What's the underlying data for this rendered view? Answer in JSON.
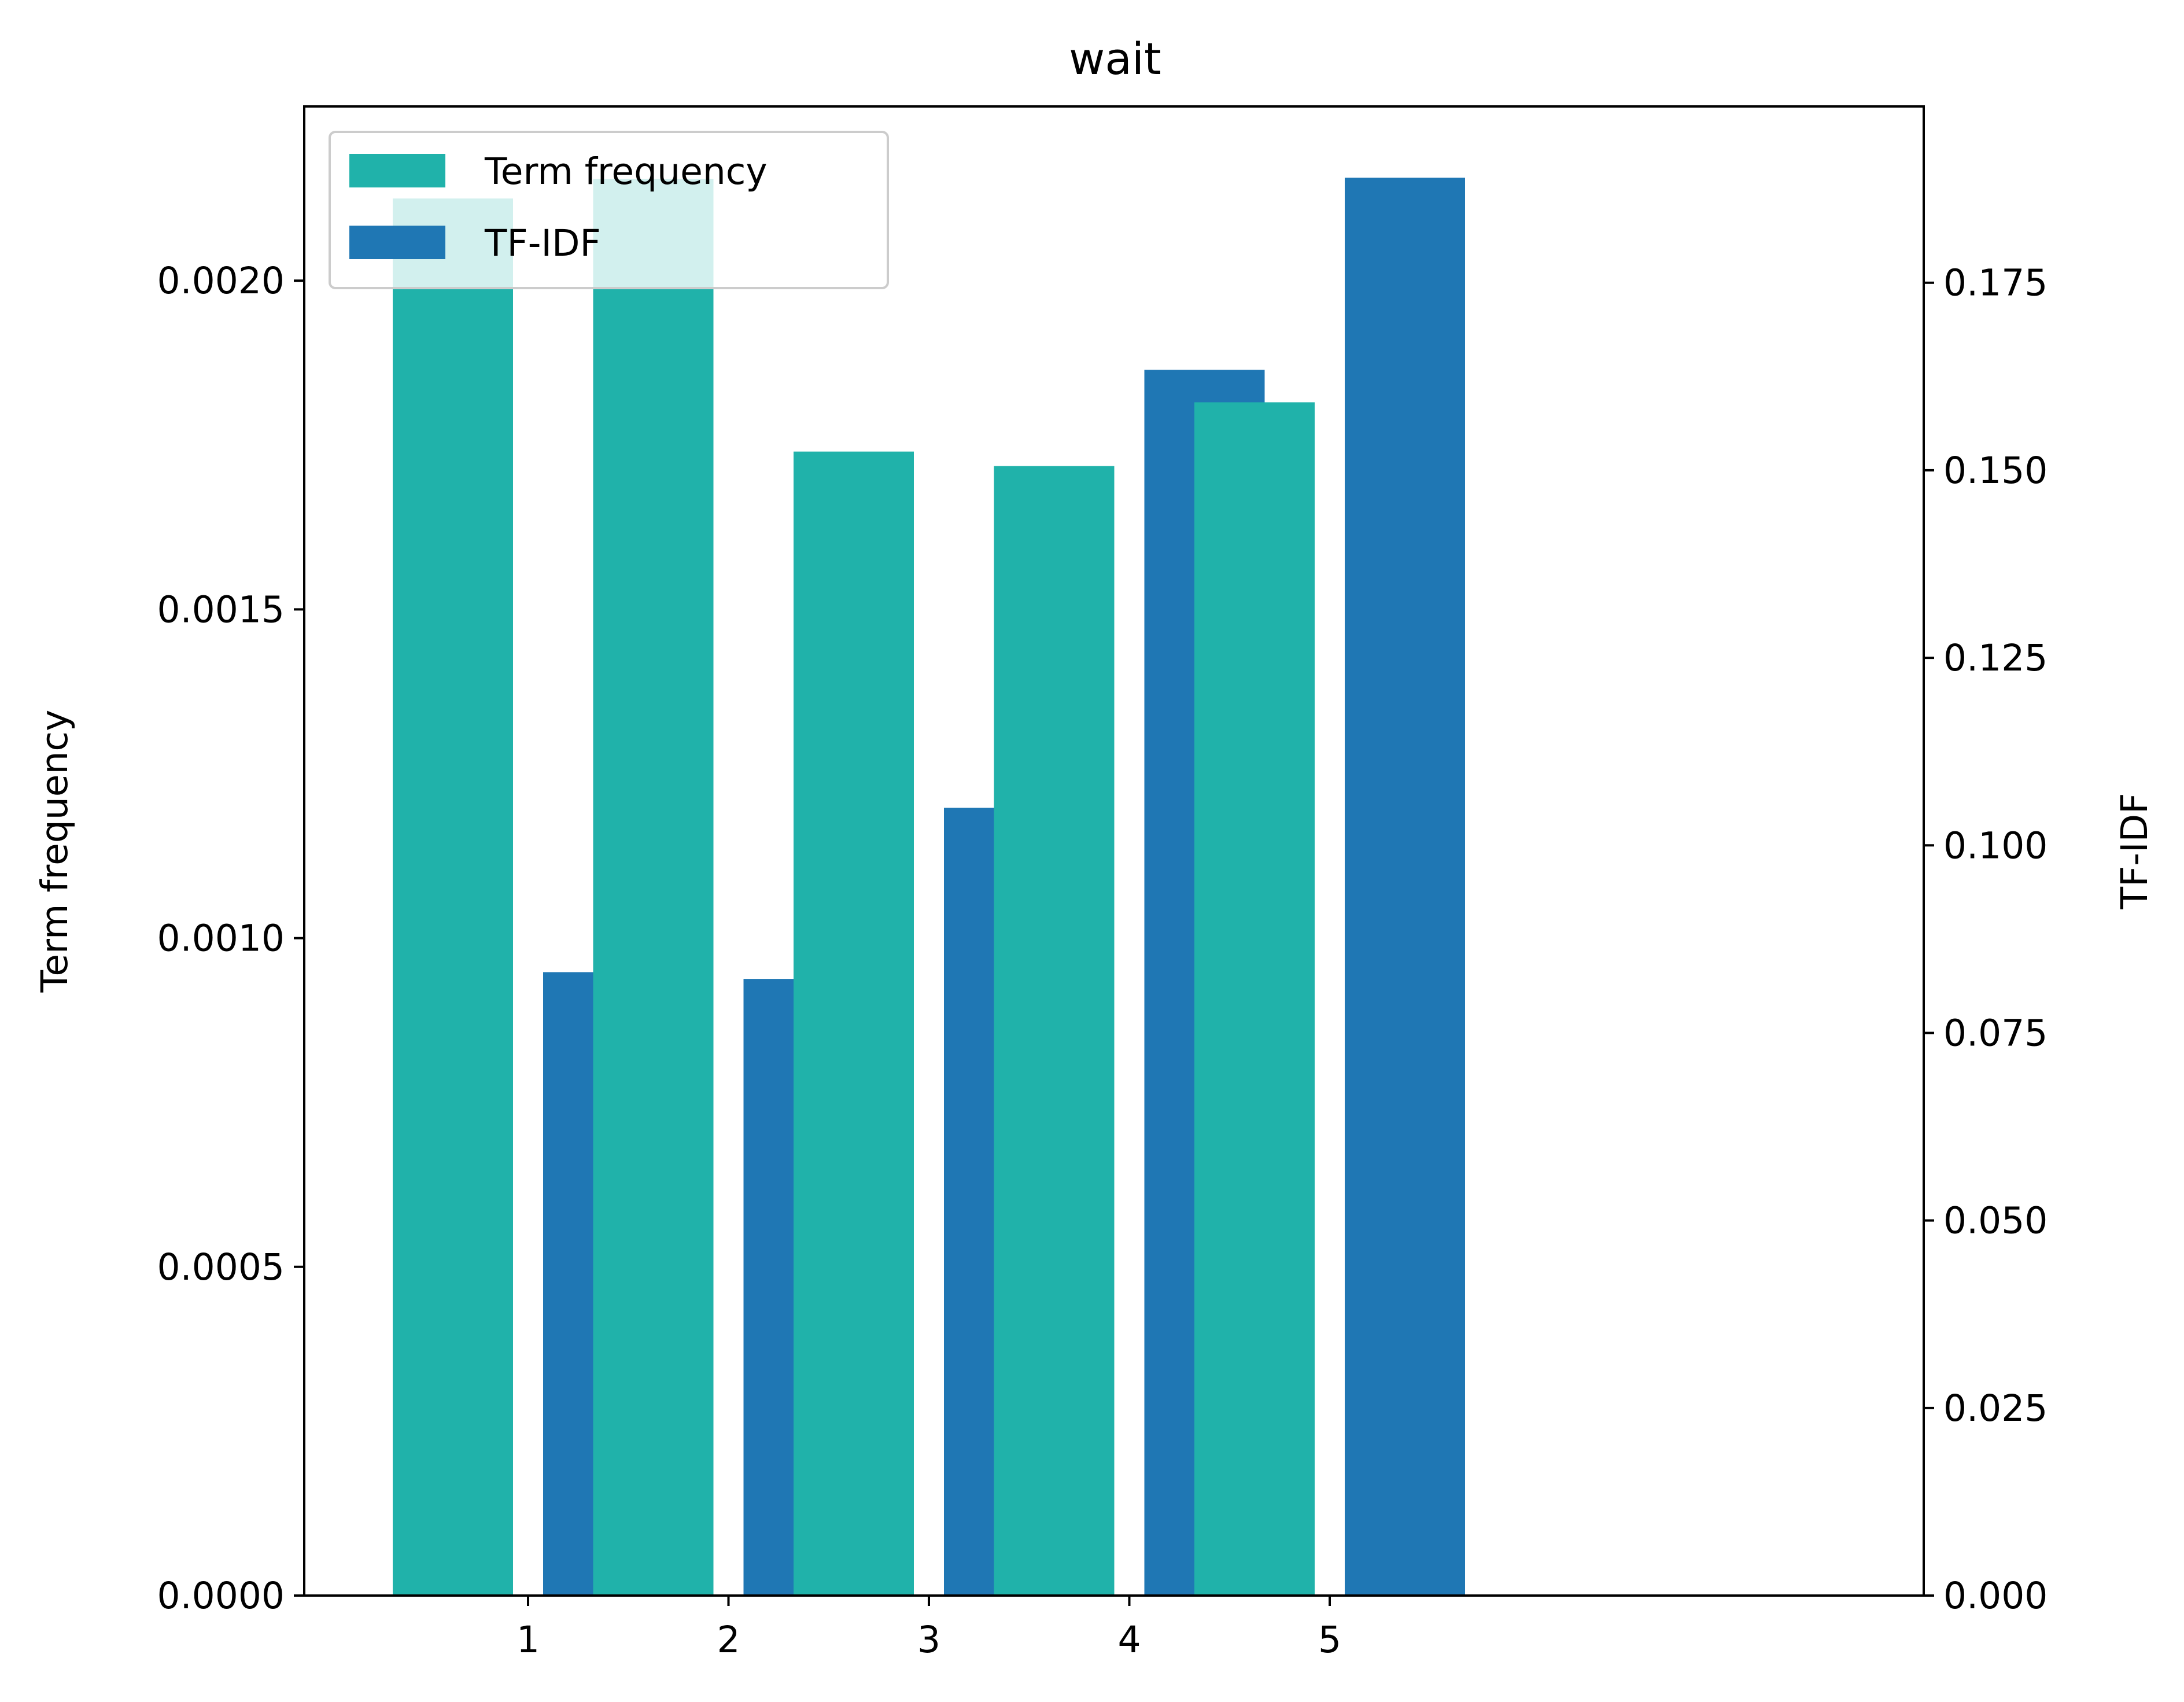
{
  "chart_data": {
    "type": "bar",
    "title": "wait",
    "categories": [
      "1",
      "2",
      "3",
      "4",
      "5"
    ],
    "series": [
      {
        "name": "Term frequency",
        "axis": "left",
        "color": "#20b2aa",
        "values": [
          0.002125,
          0.002155,
          0.00174,
          0.001718,
          0.001815
        ]
      },
      {
        "name": "TF-IDF",
        "axis": "right",
        "color": "#1f77b4",
        "values": [
          0.0831,
          0.0822,
          0.105,
          0.1634,
          0.189
        ]
      }
    ],
    "left_axis": {
      "label": "Term frequency",
      "ylim": [
        0,
        0.002265
      ],
      "ticks": [
        "0.0000",
        "0.0005",
        "0.0010",
        "0.0015",
        "0.0020"
      ],
      "tick_values": [
        0,
        0.0005,
        0.001,
        0.0015,
        0.002
      ]
    },
    "right_axis": {
      "label": "TF-IDF",
      "ylim": [
        0,
        0.1985
      ],
      "ticks": [
        "0.000",
        "0.025",
        "0.050",
        "0.075",
        "0.100",
        "0.125",
        "0.150",
        "0.175"
      ],
      "tick_values": [
        0,
        0.025,
        0.05,
        0.075,
        0.1,
        0.125,
        0.15,
        0.175
      ]
    },
    "legend": {
      "position": "top-left",
      "entries": [
        "Term frequency",
        "TF-IDF"
      ]
    },
    "grid": false
  }
}
